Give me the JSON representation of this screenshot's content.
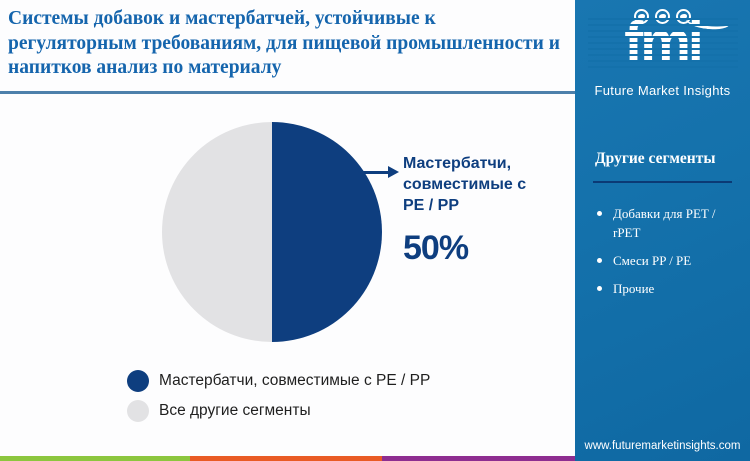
{
  "header": {
    "title": "Системы добавок и мастербатчей, устойчивые к регуляторным требованиям, для пищевой промышленности и напитков анализ по материалу"
  },
  "chart_data": {
    "type": "pie",
    "title": "Системы добавок и мастербатчей, устойчивые к регуляторным требованиям, для пищевой промышленности и напитков анализ по материалу",
    "labels": [
      "Мастербатчи, совместимые с PE / PP",
      "Все другие сегменты"
    ],
    "values": [
      50,
      50
    ],
    "colors": [
      "#0e3e7f",
      "#e2e2e4"
    ],
    "start_angle_deg": 0,
    "legend_position": "bottom-left",
    "annotation": {
      "label": "Мастербатчи, совместимые с PE / PP",
      "value_label": "50%"
    }
  },
  "callout": {
    "label": "Мастербатчи, совместимые с PE / PP",
    "percent": "50%"
  },
  "sidebar": {
    "logo": {
      "acronym": "fmi",
      "name": "Future Market Insights",
      "icons": [
        "americas-map-icon",
        "europe-map-icon",
        "globe-icon"
      ]
    },
    "section_title": "Другие сегменты",
    "items": [
      "Добавки для PET / rPET",
      "Смеси PP / PE",
      "Прочие"
    ],
    "website": "www.futuremarketinsights.com"
  },
  "footer": {
    "stripe_colors": [
      "#8cc63e",
      "#e95b25",
      "#8e2d90"
    ]
  },
  "colors": {
    "title_blue": "#1565ad",
    "accent_dark_blue": "#0e3e7f",
    "pie_gray": "#e2e2e4",
    "sidebar_blue": "#1471ab",
    "header_rule": "#4d80ab",
    "sidebar_divider": "#0b3a75"
  }
}
